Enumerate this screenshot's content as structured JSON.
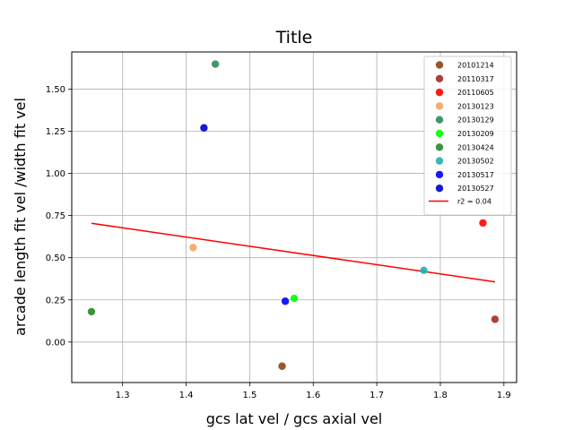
{
  "chart_data": {
    "type": "scatter",
    "title": "Title",
    "xlabel": "gcs lat vel / gcs axial vel",
    "ylabel": "arcade length fit vel /width fit vel",
    "xlim": [
      1.22,
      1.92
    ],
    "ylim": [
      -0.24,
      1.72
    ],
    "xticks": [
      "1.3",
      "1.4",
      "1.5",
      "1.6",
      "1.7",
      "1.8",
      "1.9"
    ],
    "yticks": [
      "0.00",
      "0.25",
      "0.50",
      "0.75",
      "1.00",
      "1.25",
      "1.50"
    ],
    "grid": true,
    "legend_position": "top-right",
    "series": [
      {
        "name": "20101214",
        "color": "#8b4513",
        "x": 1.551,
        "y": -0.143
      },
      {
        "name": "20110317",
        "color": "#a52a2a",
        "x": 1.886,
        "y": 0.135
      },
      {
        "name": "20110605",
        "color": "#ff0000",
        "x": 1.867,
        "y": 0.706
      },
      {
        "name": "20130123",
        "color": "#f4a460",
        "x": 1.411,
        "y": 0.56
      },
      {
        "name": "20130129",
        "color": "#2e8b57",
        "x": 1.446,
        "y": 1.648
      },
      {
        "name": "20130209",
        "color": "#00ff00",
        "x": 1.57,
        "y": 0.259
      },
      {
        "name": "20130424",
        "color": "#228b22",
        "x": 1.251,
        "y": 0.18
      },
      {
        "name": "20130502",
        "color": "#20b2aa",
        "x": 1.774,
        "y": 0.425
      },
      {
        "name": "20130517",
        "color": "#0000ff",
        "x": 1.556,
        "y": 0.242
      },
      {
        "name": "20130527",
        "color": "#0000cd",
        "x": 1.428,
        "y": 1.27
      }
    ],
    "fit_line": {
      "label": "r2 = 0.04",
      "color": "#ff0000",
      "x": [
        1.251,
        1.886
      ],
      "y": [
        0.704,
        0.357
      ]
    }
  }
}
